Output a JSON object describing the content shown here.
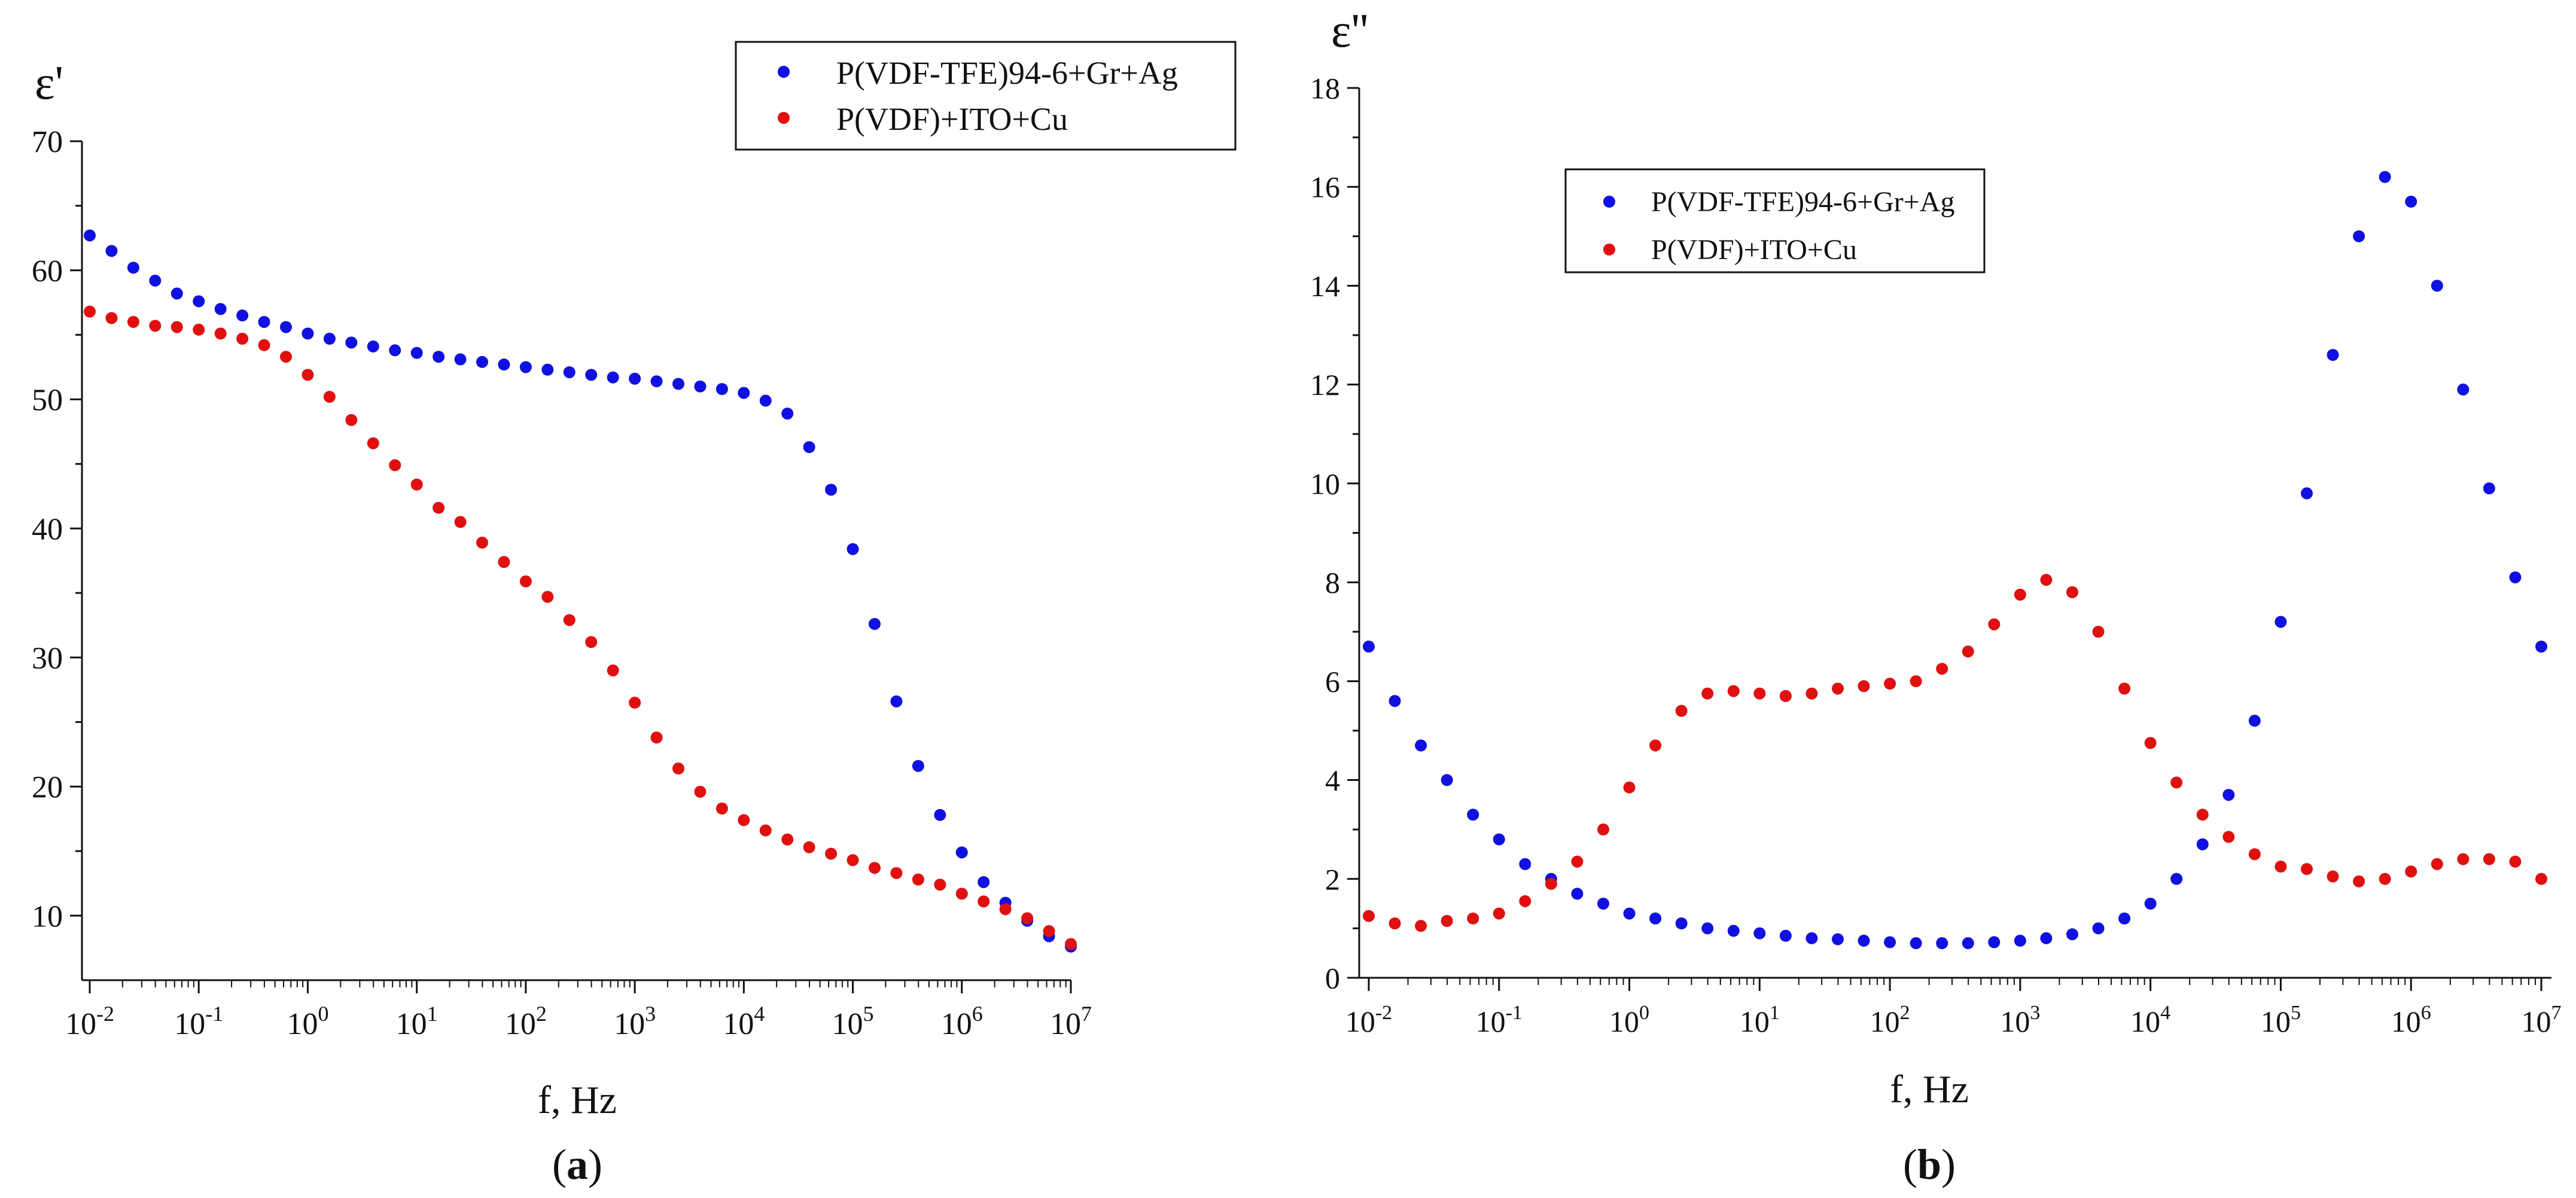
{
  "chart_data": [
    {
      "panel_label": "a",
      "type": "scatter",
      "ylabel": "ε'",
      "xlabel": "f, Hz",
      "x_scale": "log10",
      "xlim_log10": [
        -2,
        7
      ],
      "ylim": [
        5,
        70
      ],
      "yticks": [
        10,
        20,
        30,
        40,
        50,
        60,
        70
      ],
      "xticks": [
        {
          "base": "10",
          "exp": "-2"
        },
        {
          "base": "10",
          "exp": "-1"
        },
        {
          "base": "10",
          "exp": "0"
        },
        {
          "base": "10",
          "exp": "1"
        },
        {
          "base": "10",
          "exp": "2"
        },
        {
          "base": "10",
          "exp": "3"
        },
        {
          "base": "10",
          "exp": "4"
        },
        {
          "base": "10",
          "exp": "5"
        },
        {
          "base": "10",
          "exp": "6"
        },
        {
          "base": "10",
          "exp": "7"
        }
      ],
      "legend_position": "top-right",
      "series": [
        {
          "name": "P(VDF-TFE)94-6+Gr+Ag",
          "color": "#1010e0",
          "log10_x": [
            -2.0,
            -1.8,
            -1.6,
            -1.4,
            -1.2,
            -1.0,
            -0.8,
            -0.6,
            -0.4,
            -0.2,
            0.0,
            0.2,
            0.4,
            0.6,
            0.8,
            1.0,
            1.2,
            1.4,
            1.6,
            1.8,
            2.0,
            2.2,
            2.4,
            2.6,
            2.8,
            3.0,
            3.2,
            3.4,
            3.6,
            3.8,
            4.0,
            4.2,
            4.4,
            4.6,
            4.8,
            5.0,
            5.2,
            5.4,
            5.6,
            5.8,
            6.0,
            6.2,
            6.4,
            6.6,
            6.8,
            7.0
          ],
          "y": [
            62.7,
            61.5,
            60.2,
            59.2,
            58.2,
            57.6,
            57.0,
            56.5,
            56.0,
            55.6,
            55.1,
            54.7,
            54.4,
            54.1,
            53.8,
            53.6,
            53.3,
            53.1,
            52.9,
            52.7,
            52.5,
            52.3,
            52.1,
            51.9,
            51.7,
            51.6,
            51.4,
            51.2,
            51.0,
            50.8,
            50.5,
            49.9,
            48.9,
            46.3,
            43.0,
            38.4,
            32.6,
            26.6,
            21.6,
            17.8,
            14.9,
            12.6,
            11.0,
            9.6,
            8.4,
            7.6
          ]
        },
        {
          "name": "P(VDF)+ITO+Cu",
          "color": "#e01010",
          "log10_x": [
            -2.0,
            -1.8,
            -1.6,
            -1.4,
            -1.2,
            -1.0,
            -0.8,
            -0.6,
            -0.4,
            -0.2,
            0.0,
            0.2,
            0.4,
            0.6,
            0.8,
            1.0,
            1.2,
            1.4,
            1.6,
            1.8,
            2.0,
            2.2,
            2.4,
            2.6,
            2.8,
            3.0,
            3.2,
            3.4,
            3.6,
            3.8,
            4.0,
            4.2,
            4.4,
            4.6,
            4.8,
            5.0,
            5.2,
            5.4,
            5.6,
            5.8,
            6.0,
            6.2,
            6.4,
            6.6,
            6.8,
            7.0
          ],
          "y": [
            56.8,
            56.3,
            56.0,
            55.7,
            55.6,
            55.4,
            55.1,
            54.7,
            54.2,
            53.3,
            51.9,
            50.2,
            48.4,
            46.6,
            44.9,
            43.4,
            41.6,
            40.5,
            38.9,
            37.4,
            35.9,
            34.7,
            32.9,
            31.2,
            29.0,
            26.5,
            23.8,
            21.4,
            19.6,
            18.3,
            17.4,
            16.6,
            15.9,
            15.3,
            14.8,
            14.3,
            13.7,
            13.3,
            12.8,
            12.4,
            11.7,
            11.1,
            10.5,
            9.8,
            8.8,
            7.8
          ]
        }
      ]
    },
    {
      "panel_label": "b",
      "type": "scatter",
      "ylabel": "ε''",
      "xlabel": "f, Hz",
      "x_scale": "log10",
      "xlim_log10": [
        -2,
        7
      ],
      "ylim": [
        0,
        18
      ],
      "yticks": [
        0,
        2,
        4,
        6,
        8,
        10,
        12,
        14,
        16,
        18
      ],
      "xticks": [
        {
          "base": "10",
          "exp": "-2"
        },
        {
          "base": "10",
          "exp": "-1"
        },
        {
          "base": "10",
          "exp": "0"
        },
        {
          "base": "10",
          "exp": "1"
        },
        {
          "base": "10",
          "exp": "2"
        },
        {
          "base": "10",
          "exp": "3"
        },
        {
          "base": "10",
          "exp": "4"
        },
        {
          "base": "10",
          "exp": "5"
        },
        {
          "base": "10",
          "exp": "6"
        },
        {
          "base": "10",
          "exp": "7"
        }
      ],
      "legend_position": "upper-center",
      "series": [
        {
          "name": "P(VDF-TFE)94-6+Gr+Ag",
          "color": "#1010e0",
          "log10_x": [
            -2.0,
            -1.8,
            -1.6,
            -1.4,
            -1.2,
            -1.0,
            -0.8,
            -0.6,
            -0.4,
            -0.2,
            0.0,
            0.2,
            0.4,
            0.6,
            0.8,
            1.0,
            1.2,
            1.4,
            1.6,
            1.8,
            2.0,
            2.2,
            2.4,
            2.6,
            2.8,
            3.0,
            3.2,
            3.4,
            3.6,
            3.8,
            4.0,
            4.2,
            4.4,
            4.6,
            4.8,
            5.0,
            5.2,
            5.4,
            5.6,
            5.8,
            6.0,
            6.2,
            6.4,
            6.6,
            6.8,
            7.0
          ],
          "y": [
            6.7,
            5.6,
            4.7,
            4.0,
            3.3,
            2.8,
            2.3,
            2.0,
            1.7,
            1.5,
            1.3,
            1.2,
            1.1,
            1.0,
            0.95,
            0.9,
            0.85,
            0.8,
            0.78,
            0.75,
            0.72,
            0.7,
            0.7,
            0.7,
            0.72,
            0.75,
            0.8,
            0.88,
            1.0,
            1.2,
            1.5,
            2.0,
            2.7,
            3.7,
            5.2,
            7.2,
            9.8,
            12.6,
            15.0,
            16.2,
            15.7,
            14.0,
            11.9,
            9.9,
            8.1,
            6.7
          ]
        },
        {
          "name": "P(VDF)+ITO+Cu",
          "color": "#e01010",
          "log10_x": [
            -2.0,
            -1.8,
            -1.6,
            -1.4,
            -1.2,
            -1.0,
            -0.8,
            -0.6,
            -0.4,
            -0.2,
            0.0,
            0.2,
            0.4,
            0.6,
            0.8,
            1.0,
            1.2,
            1.4,
            1.6,
            1.8,
            2.0,
            2.2,
            2.4,
            2.6,
            2.8,
            3.0,
            3.2,
            3.4,
            3.6,
            3.8,
            4.0,
            4.2,
            4.4,
            4.6,
            4.8,
            5.0,
            5.2,
            5.4,
            5.6,
            5.8,
            6.0,
            6.2,
            6.4,
            6.6,
            6.8,
            7.0
          ],
          "y": [
            1.25,
            1.1,
            1.05,
            1.15,
            1.2,
            1.3,
            1.55,
            1.9,
            2.35,
            3.0,
            3.85,
            4.7,
            5.4,
            5.75,
            5.8,
            5.75,
            5.7,
            5.75,
            5.85,
            5.9,
            5.95,
            6.0,
            6.25,
            6.6,
            7.15,
            7.75,
            8.05,
            7.8,
            7.0,
            5.85,
            4.75,
            3.95,
            3.3,
            2.85,
            2.5,
            2.25,
            2.2,
            2.05,
            1.95,
            2.0,
            2.15,
            2.3,
            2.4,
            2.4,
            2.35,
            2.0
          ]
        }
      ]
    }
  ]
}
